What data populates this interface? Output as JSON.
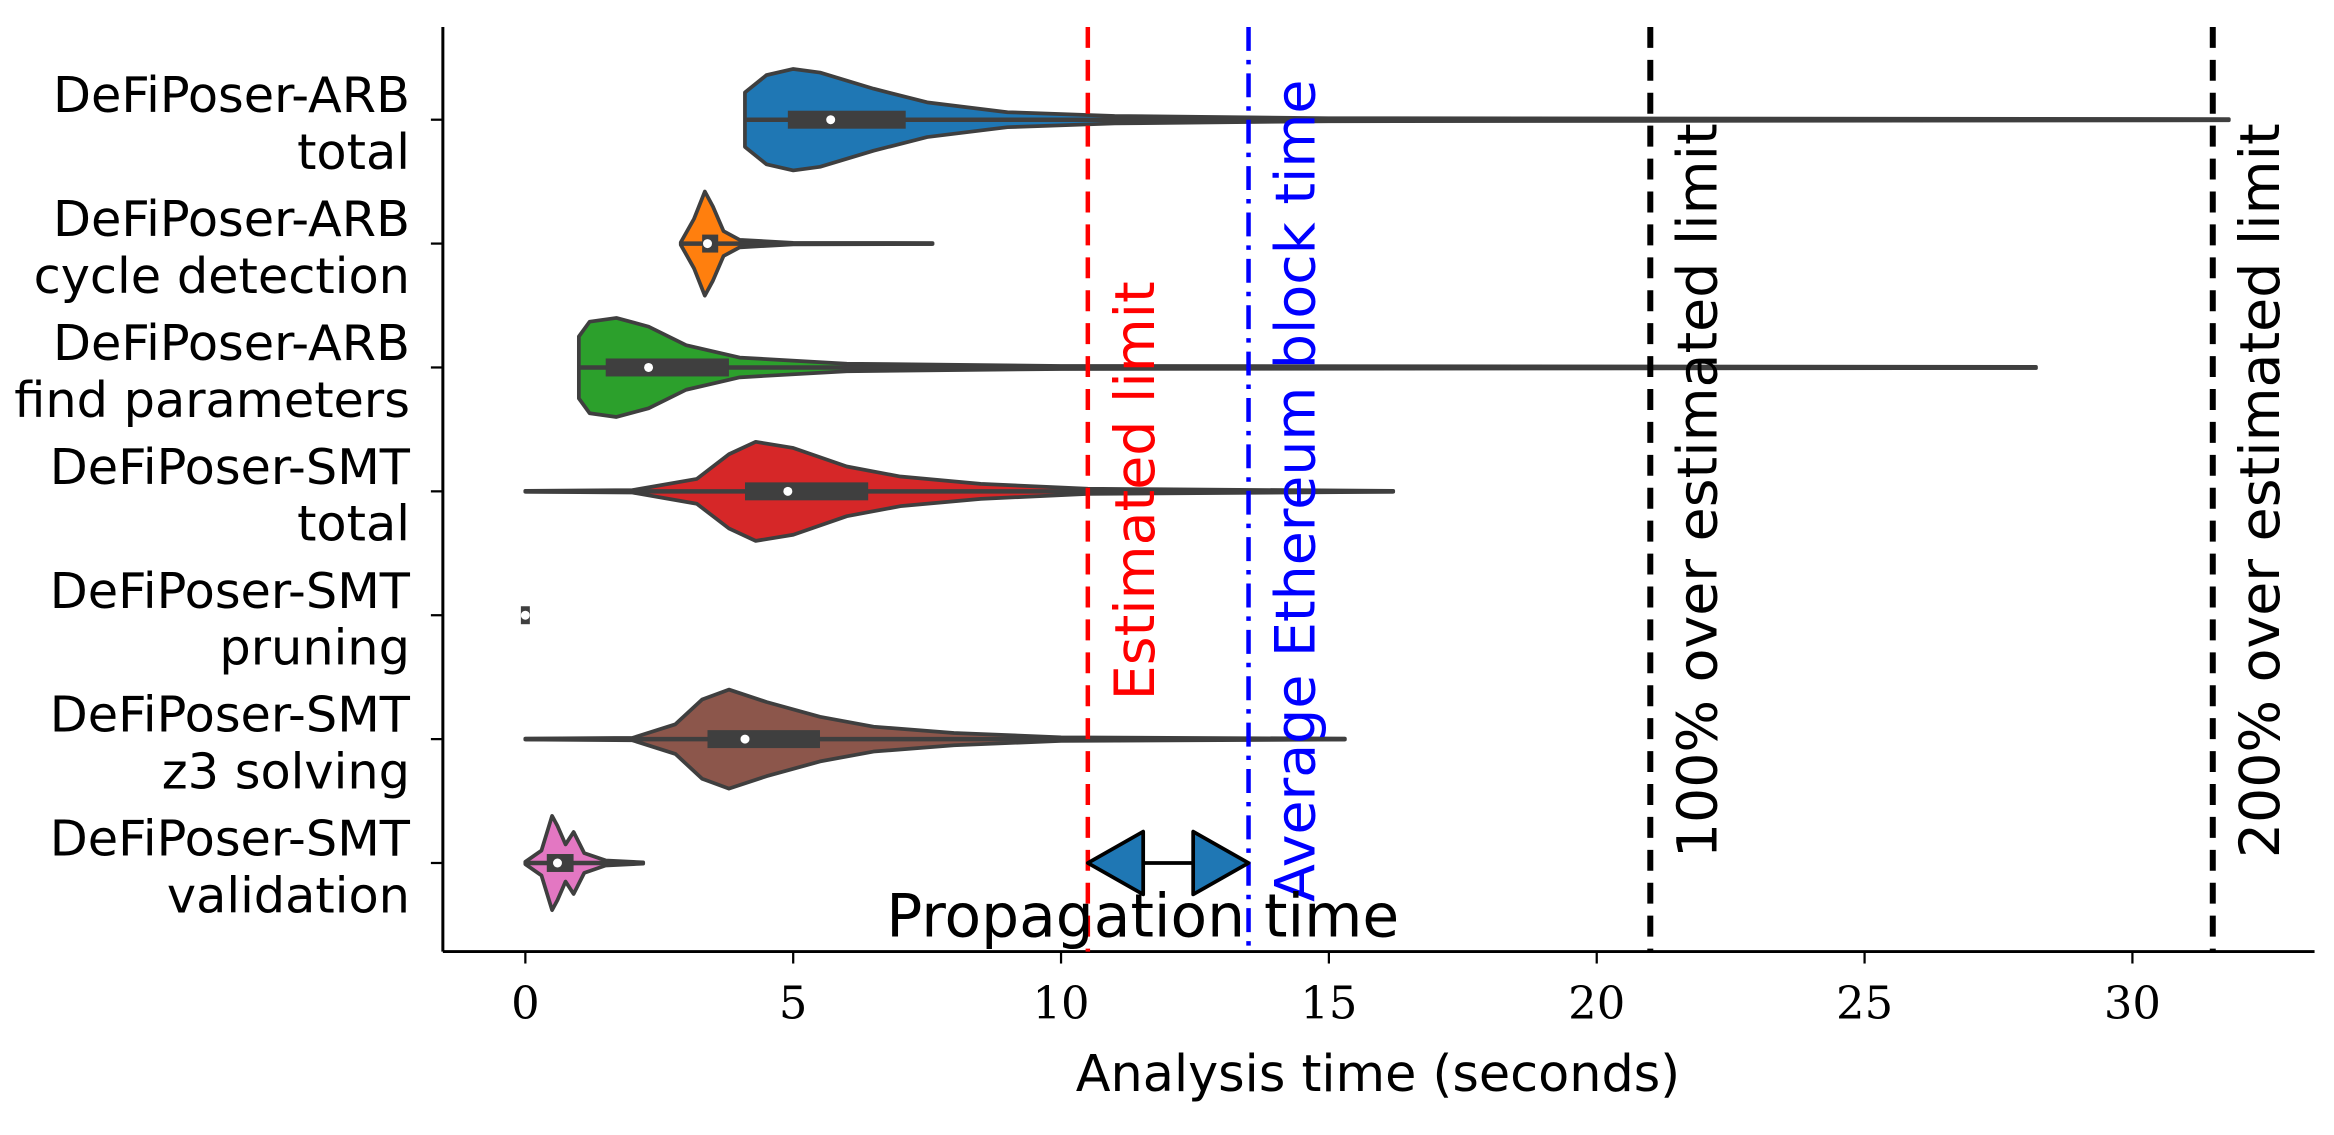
{
  "chart_data": {
    "type": "violin",
    "x_label": "Analysis time (seconds)",
    "xlim": [
      -1.54,
      33.4
    ],
    "xticks": [
      0,
      5,
      10,
      15,
      20,
      25,
      30
    ],
    "categories": [
      [
        "DeFiPoser-ARB",
        "total"
      ],
      [
        "DeFiPoser-ARB",
        "cycle detection"
      ],
      [
        "DeFiPoser-ARB",
        "find parameters"
      ],
      [
        "DeFiPoser-SMT",
        "total"
      ],
      [
        "DeFiPoser-SMT",
        "pruning"
      ],
      [
        "DeFiPoser-SMT",
        "z3 solving"
      ],
      [
        "DeFiPoser-SMT",
        "validation"
      ]
    ],
    "violins": [
      {
        "color": "#1f77b4",
        "min": 4.1,
        "q1": 4.9,
        "median": 5.7,
        "q3": 7.1,
        "max": 31.8,
        "density_x": [
          4.1,
          4.5,
          5.0,
          5.5,
          6.5,
          7.5,
          9,
          11,
          15,
          31.8
        ],
        "density": [
          0.22,
          0.36,
          0.41,
          0.38,
          0.25,
          0.14,
          0.06,
          0.03,
          0.012,
          0.005
        ]
      },
      {
        "color": "#ff7f0e",
        "min": 2.9,
        "q1": 3.3,
        "median": 3.4,
        "q3": 3.6,
        "max": 7.6,
        "density_x": [
          2.9,
          3.15,
          3.35,
          3.5,
          3.7,
          4.0,
          5,
          7.6
        ],
        "density": [
          0.01,
          0.2,
          0.42,
          0.3,
          0.1,
          0.03,
          0.006,
          0.004
        ]
      },
      {
        "color": "#2ca02c",
        "min": 1.0,
        "q1": 1.5,
        "median": 2.3,
        "q3": 3.8,
        "max": 28.2,
        "density_x": [
          1.0,
          1.2,
          1.7,
          2.3,
          3,
          4,
          6,
          10,
          28.2
        ],
        "density": [
          0.25,
          0.37,
          0.4,
          0.33,
          0.18,
          0.08,
          0.03,
          0.012,
          0.005
        ]
      },
      {
        "color": "#d62728",
        "min": 0,
        "q1": 4.1,
        "median": 4.9,
        "q3": 6.4,
        "max": 16.2,
        "density_x": [
          0,
          2,
          3.2,
          3.8,
          4.3,
          5,
          6,
          7,
          8.5,
          10.5,
          16.2
        ],
        "density": [
          0.004,
          0.01,
          0.1,
          0.3,
          0.4,
          0.35,
          0.2,
          0.12,
          0.06,
          0.02,
          0.004
        ]
      },
      {
        "color": "#9467bd",
        "min": 0,
        "q1": 0,
        "median": 0,
        "q3": 0.05,
        "max": 0.05,
        "density_x": [
          0,
          0.05
        ],
        "density": [
          0.02,
          0.02
        ]
      },
      {
        "color": "#8c564b",
        "min": 0,
        "q1": 3.4,
        "median": 4.1,
        "q3": 5.5,
        "max": 15.3,
        "density_x": [
          0,
          2,
          2.8,
          3.3,
          3.8,
          4.5,
          5.5,
          6.5,
          8,
          10,
          15.3
        ],
        "density": [
          0.004,
          0.01,
          0.12,
          0.32,
          0.4,
          0.3,
          0.18,
          0.1,
          0.05,
          0.015,
          0.004
        ]
      },
      {
        "color": "#e377c2",
        "min": 0,
        "q1": 0.4,
        "median": 0.6,
        "q3": 0.9,
        "max": 2.2,
        "density_x": [
          0,
          0.3,
          0.5,
          0.6,
          0.75,
          0.9,
          1.1,
          1.5,
          2.2
        ],
        "density": [
          0.01,
          0.1,
          0.38,
          0.3,
          0.15,
          0.25,
          0.08,
          0.02,
          0.005
        ]
      }
    ],
    "reference_lines": [
      {
        "x": 10.5,
        "label": "Estimated limit",
        "color": "#ff0000",
        "style": "dashed"
      },
      {
        "x": 13.5,
        "label": "Average Ethereum block time",
        "color": "#0000ff",
        "style": "dashdot"
      },
      {
        "x": 21,
        "label": "100% over estimated limit",
        "color": "#000000",
        "style": "dashed"
      },
      {
        "x": 31.5,
        "label": "200% over estimated limit",
        "color": "#000000",
        "style": "dashed"
      }
    ],
    "annotation": {
      "text": "Propagation time",
      "from": 10.5,
      "to": 13.5,
      "color": "#1f77b4"
    }
  }
}
